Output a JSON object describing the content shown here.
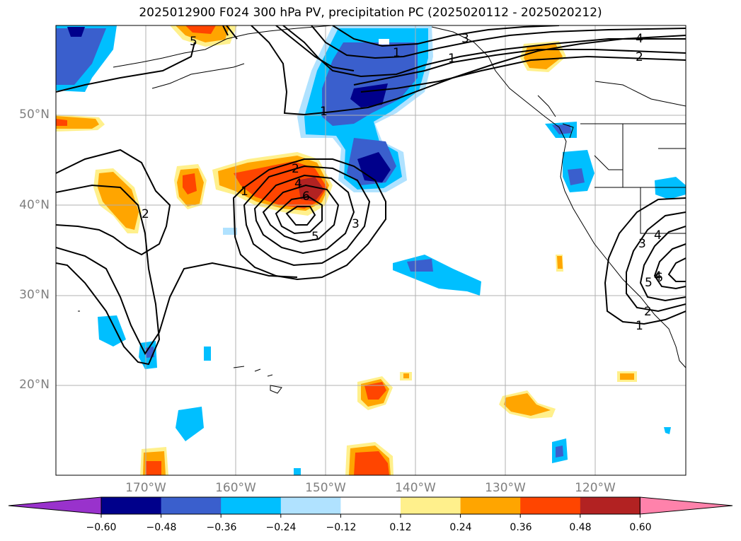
{
  "title": "2025012900 F024 300 hPa PV, precipitation PC (2025020112 - 2025020212)",
  "lat_labels": [
    "50°N",
    "40°N",
    "30°N",
    "20°N"
  ],
  "lon_labels": [
    "170°W",
    "160°W",
    "150°W",
    "140°W",
    "130°W",
    "120°W"
  ],
  "contour_labels": [
    "1",
    "1",
    "1",
    "2",
    "2",
    "3",
    "4",
    "5",
    "6",
    "1",
    "2",
    "3",
    "4",
    "5",
    "1",
    "2",
    "3",
    "4",
    "4",
    "5",
    "6"
  ],
  "colorbar": {
    "tick_labels": [
      "−0.60",
      "−0.48",
      "−0.36",
      "−0.24",
      "−0.12",
      "0.12",
      "0.24",
      "0.36",
      "0.48",
      "0.60"
    ],
    "colors": [
      "#9932cc",
      "#00008b",
      "#3a5fcd",
      "#00bfff",
      "#b0e2ff",
      "#ffffff",
      "#fff08c",
      "#ffa500",
      "#ff4500",
      "#b22222",
      "#ff82ab"
    ]
  }
}
